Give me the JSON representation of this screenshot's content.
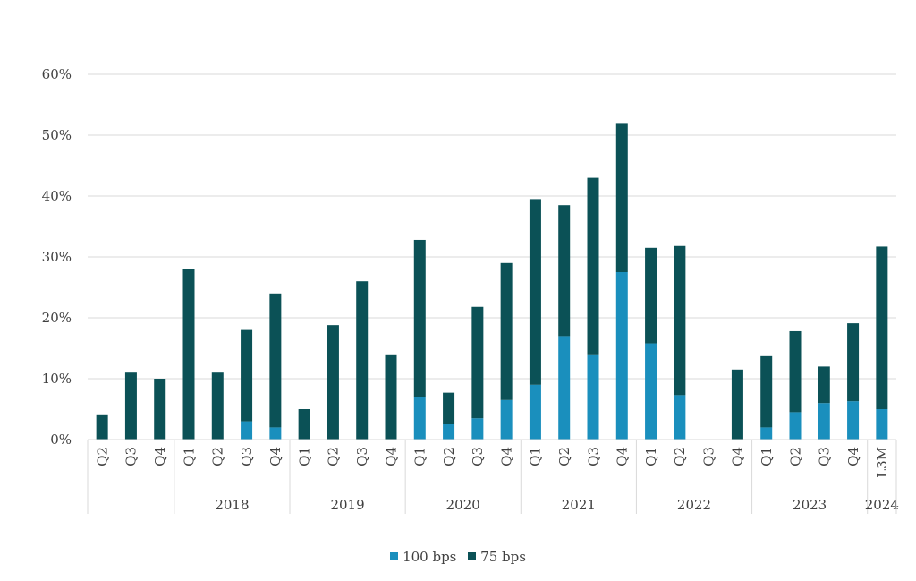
{
  "chart_data": {
    "type": "bar",
    "stacked": true,
    "ylim": [
      0,
      60
    ],
    "yticks": [
      0,
      10,
      20,
      30,
      40,
      50,
      60
    ],
    "ytick_suffix": "%",
    "grid": true,
    "legend_position": "bottom-center",
    "categories": [
      "Q2",
      "Q3",
      "Q4",
      "Q1",
      "Q2",
      "Q3",
      "Q4",
      "Q1",
      "Q2",
      "Q3",
      "Q4",
      "Q1",
      "Q2",
      "Q3",
      "Q4",
      "Q1",
      "Q2",
      "Q3",
      "Q4",
      "Q1",
      "Q2",
      "Q3",
      "Q4",
      "Q1",
      "Q2",
      "Q3",
      "Q4",
      "L3M"
    ],
    "groups": [
      {
        "label": "",
        "start": 0,
        "count": 3
      },
      {
        "label": "2018",
        "start": 3,
        "count": 4
      },
      {
        "label": "2019",
        "start": 7,
        "count": 4
      },
      {
        "label": "2020",
        "start": 11,
        "count": 4
      },
      {
        "label": "2021",
        "start": 15,
        "count": 4
      },
      {
        "label": "2022",
        "start": 19,
        "count": 4
      },
      {
        "label": "2023",
        "start": 23,
        "count": 4
      },
      {
        "label": "2024",
        "start": 27,
        "count": 1
      }
    ],
    "series": [
      {
        "name": "100 bps",
        "color": "#1a8fbd",
        "values": [
          0,
          0,
          0,
          0,
          0,
          3,
          2,
          0,
          0,
          0,
          0,
          7,
          2.5,
          3.5,
          6.5,
          9,
          17,
          14,
          27.5,
          15.8,
          7.3,
          0,
          0,
          2,
          4.5,
          6,
          6.3,
          5
        ]
      },
      {
        "name": "75 bps",
        "color": "#0b5156",
        "values": [
          4,
          11,
          10,
          28,
          11,
          15,
          22,
          5,
          18.8,
          26,
          14,
          25.8,
          5.2,
          18.3,
          22.5,
          30.5,
          21.5,
          29,
          24.5,
          15.7,
          24.5,
          0,
          11.5,
          11.7,
          13.3,
          6,
          12.8,
          26.7
        ]
      }
    ]
  }
}
